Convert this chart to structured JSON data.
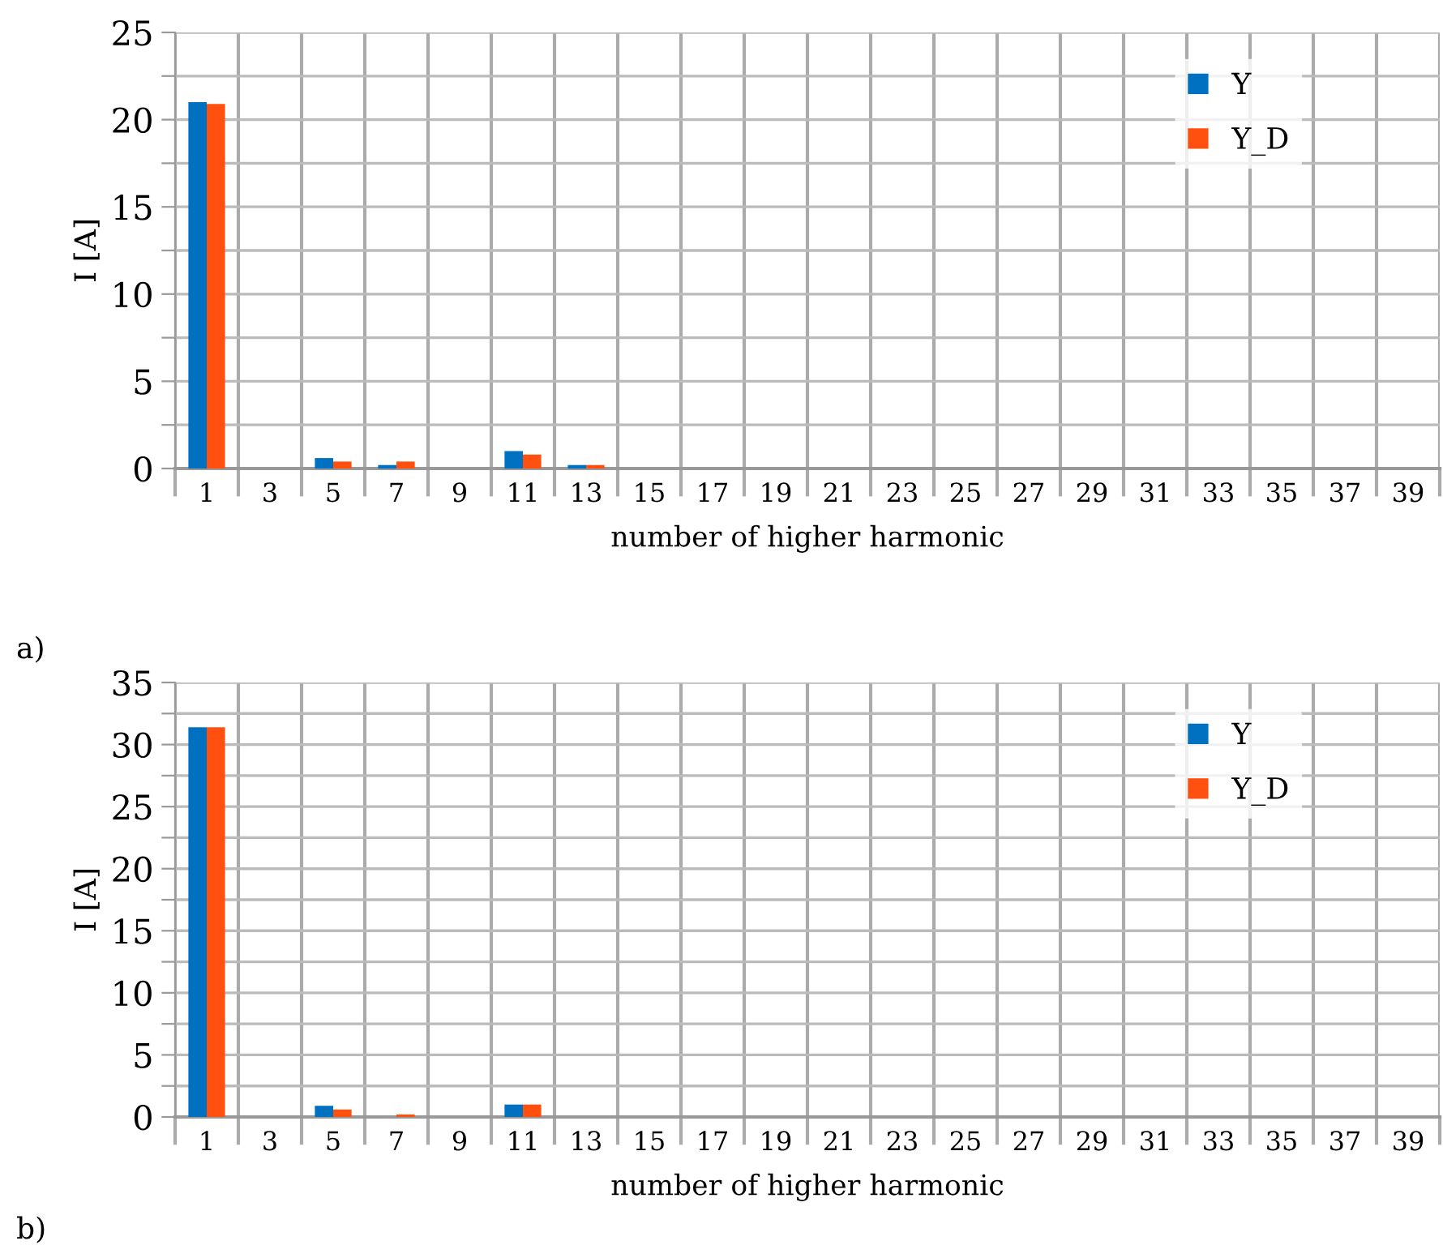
{
  "chart_data": [
    {
      "type": "bar",
      "xlabel": "number of higher harmonic",
      "ylabel": "I [A]",
      "categories": [
        "1",
        "3",
        "5",
        "7",
        "9",
        "11",
        "13",
        "15",
        "17",
        "19",
        "21",
        "23",
        "25",
        "27",
        "29",
        "31",
        "33",
        "35",
        "37",
        "39"
      ],
      "series": [
        {
          "name": "Y",
          "color": "#0070c0",
          "values": [
            21.0,
            0,
            0.6,
            0.2,
            0,
            1.0,
            0.2,
            0,
            0,
            0,
            0,
            0,
            0,
            0,
            0,
            0,
            0,
            0,
            0,
            0
          ]
        },
        {
          "name": "Y_D",
          "color": "#ff5010",
          "values": [
            20.9,
            0,
            0.4,
            0.4,
            0,
            0.8,
            0.2,
            0,
            0,
            0,
            0,
            0,
            0,
            0,
            0,
            0,
            0,
            0,
            0,
            0
          ]
        }
      ],
      "ylim": [
        0,
        25
      ],
      "yticks": [
        0,
        {
          "value": 2.5,
          "label": null
        },
        5,
        {
          "value": 7.5,
          "label": null
        },
        10,
        {
          "value": 12.5,
          "label": null
        },
        15,
        {
          "value": 17.5,
          "label": null
        },
        20,
        {
          "value": 22.5,
          "label": null
        },
        25
      ],
      "grid": true,
      "legend": "top right",
      "annotations": [
        "a)"
      ]
    },
    {
      "type": "bar",
      "xlabel": "number of higher harmonic",
      "ylabel": "I [A]",
      "categories": [
        "1",
        "3",
        "5",
        "7",
        "9",
        "11",
        "13",
        "15",
        "17",
        "19",
        "21",
        "23",
        "25",
        "27",
        "29",
        "31",
        "33",
        "35",
        "37",
        "39"
      ],
      "series": [
        {
          "name": "Y",
          "color": "#0070c0",
          "values": [
            31.4,
            0,
            0.9,
            0,
            0,
            1.0,
            0,
            0,
            0,
            0,
            0,
            0,
            0,
            0,
            0,
            0,
            0,
            0,
            0,
            0
          ]
        },
        {
          "name": "Y_D",
          "color": "#ff5010",
          "values": [
            31.4,
            0,
            0.6,
            0.2,
            0,
            1.0,
            0,
            0,
            0,
            0,
            0,
            0,
            0,
            0,
            0,
            0,
            0,
            0,
            0,
            0
          ]
        }
      ],
      "ylim": [
        0,
        35
      ],
      "yticks": [
        0,
        {
          "value": 2.5,
          "label": null
        },
        5,
        {
          "value": 7.5,
          "label": null
        },
        10,
        {
          "value": 12.5,
          "label": null
        },
        15,
        {
          "value": 17.5,
          "label": null
        },
        20,
        {
          "value": 22.5,
          "label": null
        },
        25,
        {
          "value": 27.5,
          "label": null
        },
        30,
        {
          "value": 32.5,
          "label": null
        },
        35
      ],
      "grid": true,
      "legend": "top right",
      "annotations": [
        "b)"
      ]
    }
  ]
}
